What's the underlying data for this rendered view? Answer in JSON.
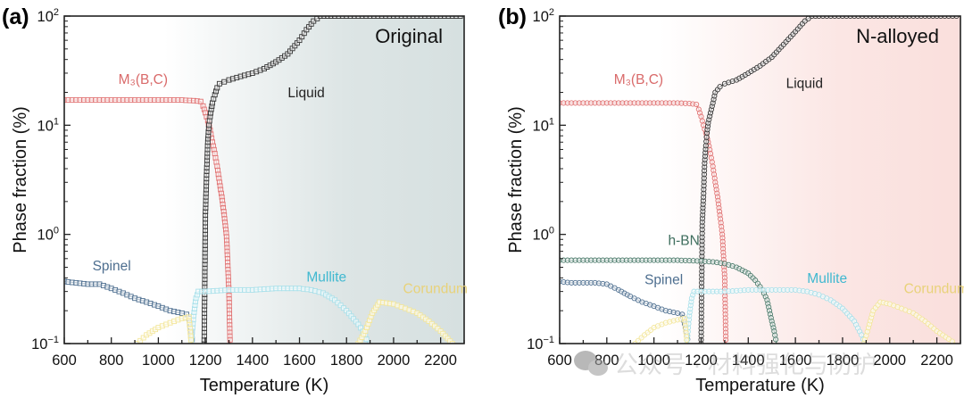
{
  "figure": {
    "watermark": "公众号 · 材料强化与防护"
  },
  "chart_data": [
    {
      "type": "scatter",
      "panel_label": "(a)",
      "condition_label": "Original",
      "xlabel": "Temperature (K)",
      "ylabel": "Phase fraction (%)",
      "xlim": [
        600,
        2300
      ],
      "ylim": [
        0.1,
        100
      ],
      "yscale": "log",
      "x_ticks": [
        600,
        800,
        1000,
        1200,
        1400,
        1600,
        1800,
        2000,
        2200
      ],
      "y_ticks": [
        {
          "base": "10",
          "exp": "2",
          "value": 100
        },
        {
          "base": "10",
          "exp": "1",
          "value": 10
        },
        {
          "base": "10",
          "exp": "0",
          "value": 1
        },
        {
          "base": "10",
          "exp": "−1",
          "value": 0.1
        }
      ],
      "background_gradient": [
        "#ffffff",
        "#dde5e5",
        "#d6e0e0"
      ],
      "grid": false,
      "marker": "square",
      "series": [
        {
          "name": "M3(B,C)",
          "label": "M₃(B,C)",
          "color": "#e07070",
          "label_color": "#d96a6a",
          "x": [
            600,
            650,
            700,
            750,
            800,
            850,
            900,
            950,
            1000,
            1050,
            1100,
            1150,
            1180,
            1190,
            1200,
            1210,
            1220,
            1230,
            1240,
            1250,
            1260,
            1270,
            1280,
            1290,
            1300,
            1305
          ],
          "y": [
            17,
            17,
            17,
            17,
            17,
            17,
            17,
            17,
            17,
            17,
            17,
            16.8,
            16.5,
            15,
            13,
            11,
            9,
            7,
            5.5,
            4.2,
            3,
            2.2,
            1.5,
            0.95,
            0.3,
            0.1
          ]
        },
        {
          "name": "Liquid",
          "label": "Liquid",
          "color": "#333333",
          "label_color": "#222222",
          "x": [
            1195,
            1200,
            1205,
            1210,
            1215,
            1220,
            1225,
            1230,
            1240,
            1250,
            1260,
            1280,
            1300,
            1350,
            1400,
            1450,
            1500,
            1550,
            1600,
            1630,
            1660,
            1690,
            1750,
            1800,
            1900,
            2000,
            2100,
            2200,
            2300
          ],
          "y": [
            0.1,
            1.5,
            3.5,
            7,
            10,
            12,
            14,
            16,
            19,
            22,
            24,
            25,
            26,
            28,
            30,
            33,
            38,
            45,
            60,
            75,
            90,
            100,
            100,
            100,
            100,
            100,
            100,
            100,
            100
          ]
        },
        {
          "name": "Spinel",
          "label": "Spinel",
          "color": "#4d6e8f",
          "label_color": "#4d6e8f",
          "x": [
            600,
            650,
            700,
            750,
            800,
            850,
            900,
            950,
            1000,
            1050,
            1100,
            1120,
            1130,
            1140,
            1145
          ],
          "y": [
            0.37,
            0.36,
            0.35,
            0.35,
            0.32,
            0.29,
            0.26,
            0.24,
            0.22,
            0.2,
            0.19,
            0.185,
            0.17,
            0.13,
            0.1
          ]
        },
        {
          "name": "Mullite",
          "label": "Mullite",
          "color": "#a8e0ea",
          "label_color": "#3fb8d0",
          "x": [
            1140,
            1150,
            1160,
            1170,
            1200,
            1300,
            1400,
            1500,
            1600,
            1650,
            1700,
            1750,
            1800,
            1850,
            1880,
            1890
          ],
          "y": [
            0.1,
            0.18,
            0.26,
            0.3,
            0.3,
            0.31,
            0.31,
            0.32,
            0.32,
            0.31,
            0.29,
            0.25,
            0.2,
            0.15,
            0.12,
            0.1
          ]
        },
        {
          "name": "Corundum",
          "label": "Corundum",
          "color": "#f3e69a",
          "label_color": "#e8d27a",
          "x": [
            910,
            950,
            1000,
            1050,
            1100,
            1130,
            1140,
            1850,
            1880,
            1910,
            1940,
            2000,
            2050,
            2100,
            2150,
            2200,
            2250,
            2270
          ],
          "y": [
            0.1,
            0.12,
            0.14,
            0.155,
            0.17,
            0.175,
            0.1,
            0.1,
            0.13,
            0.19,
            0.24,
            0.23,
            0.21,
            0.19,
            0.16,
            0.13,
            0.1,
            0.1
          ],
          "segments": [
            [
              0,
              6
            ],
            [
              7,
              17
            ]
          ]
        }
      ]
    },
    {
      "type": "scatter",
      "panel_label": "(b)",
      "condition_label": "N-alloyed",
      "xlabel": "Temperature (K)",
      "ylabel": "Phase fraction (%)",
      "xlim": [
        600,
        2300
      ],
      "ylim": [
        0.1,
        100
      ],
      "yscale": "log",
      "x_ticks": [
        600,
        800,
        1000,
        1200,
        1400,
        1600,
        1800,
        2000,
        2200
      ],
      "y_ticks": [
        {
          "base": "10",
          "exp": "2",
          "value": 100
        },
        {
          "base": "10",
          "exp": "1",
          "value": 10
        },
        {
          "base": "10",
          "exp": "0",
          "value": 1
        },
        {
          "base": "10",
          "exp": "−1",
          "value": 0.1
        }
      ],
      "background_gradient": [
        "#ffffff",
        "#fbe6e4",
        "#fadfdc"
      ],
      "grid": false,
      "marker": "circle",
      "series": [
        {
          "name": "M3(B,C)",
          "label": "M₃(B,C)",
          "color": "#e07070",
          "label_color": "#d96a6a",
          "x": [
            600,
            650,
            700,
            750,
            800,
            850,
            900,
            950,
            1000,
            1050,
            1100,
            1150,
            1180,
            1190,
            1200,
            1210,
            1220,
            1230,
            1240,
            1250,
            1260,
            1270,
            1280,
            1290,
            1300,
            1305
          ],
          "y": [
            16,
            16,
            16,
            16,
            16,
            16,
            16,
            16,
            16,
            16,
            16,
            15.8,
            15.5,
            14,
            12,
            10,
            8.5,
            7,
            5.5,
            4.2,
            3,
            2.2,
            1.5,
            1.0,
            0.4,
            0.1
          ]
        },
        {
          "name": "Liquid",
          "label": "Liquid",
          "color": "#333333",
          "label_color": "#222222",
          "x": [
            1200,
            1205,
            1210,
            1215,
            1220,
            1225,
            1230,
            1240,
            1250,
            1260,
            1280,
            1300,
            1350,
            1400,
            1450,
            1500,
            1550,
            1600,
            1640,
            1670,
            1700,
            1800,
            1900,
            2000,
            2100,
            2200,
            2300
          ],
          "y": [
            0.1,
            1.3,
            2.2,
            4.5,
            6.5,
            8.5,
            10.5,
            13,
            16,
            20,
            22.5,
            24,
            26,
            30,
            35,
            42,
            55,
            72,
            90,
            100,
            100,
            100,
            100,
            100,
            100,
            100,
            100
          ]
        },
        {
          "name": "h-BN",
          "label": "h-BN",
          "color": "#4a7a6a",
          "label_color": "#3f6e5e",
          "x": [
            600,
            700,
            800,
            900,
            1000,
            1100,
            1200,
            1250,
            1300,
            1350,
            1400,
            1430,
            1460,
            1480,
            1490,
            1500,
            1510,
            1520
          ],
          "y": [
            0.58,
            0.58,
            0.58,
            0.58,
            0.58,
            0.58,
            0.57,
            0.56,
            0.54,
            0.5,
            0.44,
            0.38,
            0.31,
            0.25,
            0.2,
            0.16,
            0.13,
            0.1
          ]
        },
        {
          "name": "Spinel",
          "label": "Spinel",
          "color": "#4d6e8f",
          "label_color": "#4d6e8f",
          "x": [
            600,
            650,
            700,
            750,
            800,
            850,
            900,
            950,
            1000,
            1050,
            1100,
            1120,
            1130,
            1140,
            1145
          ],
          "y": [
            0.37,
            0.36,
            0.36,
            0.36,
            0.35,
            0.31,
            0.27,
            0.24,
            0.22,
            0.2,
            0.19,
            0.185,
            0.15,
            0.12,
            0.1
          ]
        },
        {
          "name": "Mullite",
          "label": "Mullite",
          "color": "#a8e0ea",
          "label_color": "#3fb8d0",
          "x": [
            1140,
            1150,
            1160,
            1170,
            1200,
            1300,
            1400,
            1500,
            1600,
            1650,
            1700,
            1750,
            1800,
            1850,
            1880,
            1895
          ],
          "y": [
            0.1,
            0.18,
            0.26,
            0.3,
            0.3,
            0.3,
            0.31,
            0.31,
            0.31,
            0.3,
            0.28,
            0.25,
            0.21,
            0.16,
            0.12,
            0.1
          ]
        },
        {
          "name": "Corundum",
          "label": "Corundum",
          "color": "#f3e69a",
          "label_color": "#e8d27a",
          "x": [
            920,
            960,
            1000,
            1050,
            1100,
            1130,
            1140,
            1890,
            1910,
            1930,
            1960,
            2000,
            2050,
            2100,
            2150,
            2200,
            2250,
            2280
          ],
          "y": [
            0.1,
            0.12,
            0.14,
            0.155,
            0.165,
            0.17,
            0.1,
            0.1,
            0.14,
            0.2,
            0.24,
            0.23,
            0.21,
            0.19,
            0.16,
            0.13,
            0.11,
            0.1
          ],
          "segments": [
            [
              0,
              6
            ],
            [
              7,
              17
            ]
          ]
        }
      ]
    }
  ]
}
